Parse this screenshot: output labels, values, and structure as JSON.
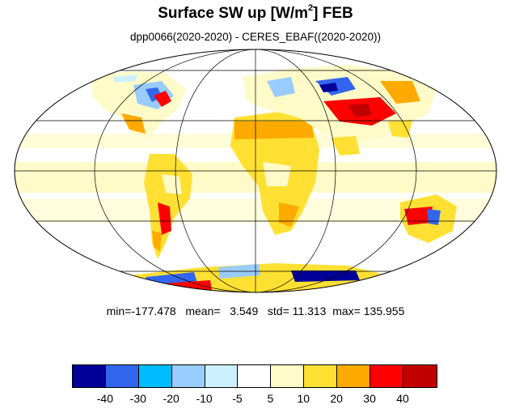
{
  "title": {
    "main": "Surface SW up [W/m",
    "sup": "2",
    "close": "]",
    "month": "FEB"
  },
  "subtitle": "dpp0066(2020-2020) - CERES_EBAF((2020-2020))",
  "stats": {
    "min_label": "min=",
    "min": "-177.478",
    "mean_label": "mean=",
    "mean": "3.549",
    "std_label": "std=",
    "std": "11.313",
    "max_label": "max=",
    "max": "135.955"
  },
  "colorbar": {
    "colors": [
      "#000099",
      "#3366ee",
      "#00bbff",
      "#99ccff",
      "#ccf0ff",
      "#ffffff",
      "#fffbc8",
      "#ffe033",
      "#ffaa00",
      "#ff0000",
      "#c00000"
    ],
    "labels": [
      "-40",
      "-30",
      "-20",
      "-10",
      "-5",
      "5",
      "10",
      "20",
      "30",
      "40"
    ]
  },
  "map": {
    "projection": "Mollweide",
    "grid": true
  }
}
